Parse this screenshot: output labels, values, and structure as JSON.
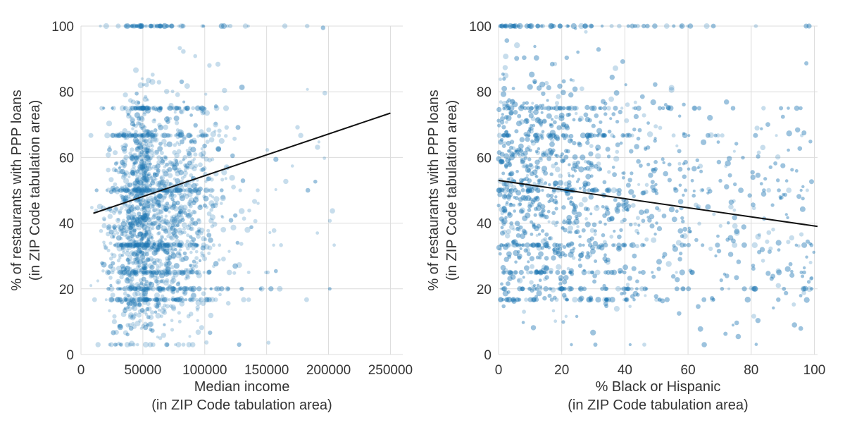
{
  "chart_data": [
    {
      "type": "scatter",
      "title": "",
      "xlabel": [
        "Median income",
        "(in ZIP Code tabulation area)"
      ],
      "ylabel": [
        "% of restaurants with PPP loans",
        "(in ZIP Code tabulation area)"
      ],
      "xlim": [
        0,
        260000
      ],
      "ylim": [
        0,
        100
      ],
      "xticks": [
        "0",
        "50000",
        "100000",
        "150000",
        "200000",
        "250000"
      ],
      "xtick_values": [
        0,
        50000,
        100000,
        150000,
        200000,
        250000
      ],
      "yticks": [
        "0",
        "20",
        "40",
        "60",
        "80",
        "100"
      ],
      "ytick_values": [
        0,
        20,
        40,
        60,
        80,
        100
      ],
      "grid": true,
      "point_color": "#1f77b4",
      "point_alpha": 0.25,
      "fit_line": {
        "x": [
          10000,
          250000
        ],
        "y": [
          43,
          73.5
        ],
        "color": "#000000"
      },
      "points_summary": {
        "x_center": 55000,
        "x_spread": 22000,
        "x_min": 8000,
        "x_max": 250000,
        "y_center": 42,
        "y_spread": 17,
        "dense_y_values": [
          100,
          75,
          66.7,
          50,
          33.3,
          25,
          20,
          16.7
        ]
      }
    },
    {
      "type": "scatter",
      "title": "",
      "xlabel": [
        "% Black or Hispanic",
        "(in ZIP Code tabulation area)"
      ],
      "ylabel": [
        "% of restaurants with PPP loans",
        "(in ZIP Code tabulation area)"
      ],
      "xlim": [
        0,
        101
      ],
      "ylim": [
        0,
        100
      ],
      "xticks": [
        "0",
        "20",
        "40",
        "60",
        "80",
        "100"
      ],
      "xtick_values": [
        0,
        20,
        40,
        60,
        80,
        100
      ],
      "yticks": [
        "0",
        "20",
        "40",
        "60",
        "80",
        "100"
      ],
      "ytick_values": [
        0,
        20,
        40,
        60,
        80,
        100
      ],
      "grid": true,
      "point_color": "#1f77b4",
      "point_alpha": 0.25,
      "fit_line": {
        "x": [
          0,
          101
        ],
        "y": [
          53,
          39
        ],
        "color": "#000000"
      },
      "points_summary": {
        "x_center": 0,
        "x_spread": 25,
        "x_min": 0,
        "x_max": 100,
        "y_center": 48,
        "y_spread": 18,
        "dense_y_values": [
          100,
          75,
          66.7,
          50,
          33.3,
          25,
          20,
          16.7
        ]
      }
    }
  ]
}
